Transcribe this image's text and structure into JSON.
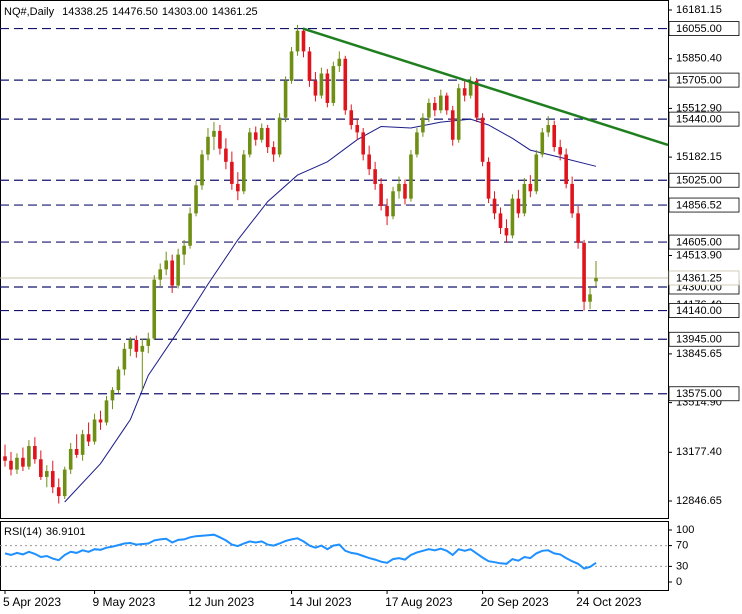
{
  "chart_data": {
    "type": "candlestick",
    "title": "NQ#,Daily",
    "ohlc_labels": [
      "14338.25",
      "14476.50",
      "14303.00",
      "14361.25"
    ],
    "up_color": "#6f8f14",
    "down_color": "#e0141c",
    "xlim": [
      -0.84,
      111.06
    ],
    "xticks": [
      {
        "value": 0,
        "label": "5 Apr 2023"
      },
      {
        "value": 15,
        "label": "9 May 2023"
      },
      {
        "value": 31,
        "label": "12 Jun 2023"
      },
      {
        "value": 48,
        "label": "14 Jul 2023"
      },
      {
        "value": 64,
        "label": "17 Aug 2023"
      },
      {
        "value": 80,
        "label": "20 Sep 2023"
      },
      {
        "value": 96,
        "label": "24 Oct 2023"
      }
    ],
    "ylim": [
      12731.2,
      16249.06
    ],
    "yticks": [
      12846.65,
      {
        "value": 13177.4,
        "label": "13177.40"
      },
      {
        "value": 13514.9,
        "label": "13514.90"
      },
      13845.65,
      {
        "value": 14176.4,
        "label": "14176.40"
      },
      {
        "value": 14513.9,
        "label": "14513.90"
      },
      15182.15,
      {
        "value": 15512.9,
        "label": "15512.90"
      },
      {
        "value": 15850.4,
        "label": "15850.40"
      },
      16181.15
    ],
    "ohlc": [
      [
        13150,
        13230,
        13080,
        13120
      ],
      [
        13120,
        13180,
        13020,
        13060
      ],
      [
        13060,
        13170,
        13030,
        13140
      ],
      [
        13140,
        13210,
        13050,
        13080
      ],
      [
        13080,
        13260,
        13060,
        13220
      ],
      [
        13220,
        13280,
        13100,
        13130
      ],
      [
        13130,
        13190,
        12990,
        13010
      ],
      [
        13010,
        13090,
        12940,
        13050
      ],
      [
        13050,
        13120,
        12900,
        12940
      ],
      [
        12940,
        13000,
        12830,
        12880
      ],
      [
        12880,
        13080,
        12860,
        13060
      ],
      [
        13060,
        13240,
        13030,
        13200
      ],
      [
        13200,
        13300,
        13140,
        13160
      ],
      [
        13160,
        13330,
        13120,
        13300
      ],
      [
        13300,
        13380,
        13220,
        13250
      ],
      [
        13250,
        13440,
        13230,
        13400
      ],
      [
        13400,
        13460,
        13330,
        13380
      ],
      [
        13380,
        13560,
        13360,
        13530
      ],
      [
        13530,
        13620,
        13470,
        13600
      ],
      [
        13600,
        13760,
        13580,
        13740
      ],
      [
        13740,
        13920,
        13700,
        13880
      ],
      [
        13880,
        13960,
        13830,
        13940
      ],
      [
        13940,
        13970,
        13820,
        13860
      ],
      [
        13860,
        13950,
        13600,
        13900
      ],
      [
        13900,
        13990,
        13850,
        13950
      ],
      [
        13950,
        14380,
        13940,
        14350
      ],
      [
        14350,
        14460,
        14300,
        14420
      ],
      [
        14420,
        14540,
        14380,
        14480
      ],
      [
        14480,
        14520,
        14260,
        14310
      ],
      [
        14310,
        14560,
        14290,
        14520
      ],
      [
        14520,
        14620,
        14450,
        14580
      ],
      [
        14580,
        14840,
        14560,
        14800
      ],
      [
        14800,
        15020,
        14780,
        14990
      ],
      [
        14990,
        15230,
        14960,
        15200
      ],
      [
        15200,
        15380,
        15160,
        15320
      ],
      [
        15320,
        15420,
        15230,
        15360
      ],
      [
        15360,
        15400,
        15200,
        15240
      ],
      [
        15240,
        15310,
        15100,
        15150
      ],
      [
        15150,
        15220,
        14960,
        15000
      ],
      [
        15000,
        15080,
        14890,
        14950
      ],
      [
        14950,
        15230,
        14930,
        15200
      ],
      [
        15200,
        15380,
        15180,
        15350
      ],
      [
        15350,
        15390,
        15260,
        15300
      ],
      [
        15300,
        15410,
        15280,
        15380
      ],
      [
        15380,
        15400,
        15210,
        15250
      ],
      [
        15250,
        15290,
        15150,
        15200
      ],
      [
        15200,
        15480,
        15180,
        15450
      ],
      [
        15450,
        15730,
        15420,
        15700
      ],
      [
        15700,
        15930,
        15680,
        15900
      ],
      [
        15900,
        16080,
        15870,
        16040
      ],
      [
        16040,
        16060,
        15860,
        15900
      ],
      [
        15900,
        15930,
        15660,
        15700
      ],
      [
        15700,
        15760,
        15560,
        15600
      ],
      [
        15600,
        15790,
        15580,
        15750
      ],
      [
        15750,
        15780,
        15520,
        15550
      ],
      [
        15550,
        15830,
        15530,
        15800
      ],
      [
        15800,
        15900,
        15760,
        15850
      ],
      [
        15850,
        15870,
        15470,
        15500
      ],
      [
        15500,
        15540,
        15370,
        15400
      ],
      [
        15400,
        15440,
        15300,
        15350
      ],
      [
        15350,
        15380,
        15160,
        15200
      ],
      [
        15200,
        15260,
        15060,
        15100
      ],
      [
        15100,
        15150,
        14960,
        15000
      ],
      [
        15000,
        15040,
        14820,
        14850
      ],
      [
        14850,
        14900,
        14720,
        14780
      ],
      [
        14780,
        14980,
        14760,
        14950
      ],
      [
        14950,
        15050,
        14900,
        15000
      ],
      [
        15000,
        15030,
        14860,
        14900
      ],
      [
        14900,
        15230,
        14880,
        15200
      ],
      [
        15200,
        15380,
        15180,
        15350
      ],
      [
        15350,
        15480,
        15320,
        15450
      ],
      [
        15450,
        15580,
        15420,
        15550
      ],
      [
        15550,
        15590,
        15460,
        15500
      ],
      [
        15500,
        15640,
        15480,
        15600
      ],
      [
        15600,
        15620,
        15470,
        15500
      ],
      [
        15500,
        15530,
        15260,
        15300
      ],
      [
        15300,
        15680,
        15280,
        15650
      ],
      [
        15650,
        15700,
        15560,
        15600
      ],
      [
        15600,
        15730,
        15580,
        15700
      ],
      [
        15700,
        15720,
        15420,
        15450
      ],
      [
        15450,
        15480,
        15120,
        15150
      ],
      [
        15150,
        15180,
        14870,
        14900
      ],
      [
        14900,
        14950,
        14760,
        14800
      ],
      [
        14800,
        14840,
        14660,
        14700
      ],
      [
        14700,
        14760,
        14600,
        14650
      ],
      [
        14650,
        14930,
        14630,
        14900
      ],
      [
        14900,
        14960,
        14770,
        14800
      ],
      [
        14800,
        15040,
        14780,
        15000
      ],
      [
        15000,
        15060,
        14910,
        14950
      ],
      [
        14950,
        15230,
        14930,
        15200
      ],
      [
        15200,
        15380,
        15180,
        15350
      ],
      [
        15350,
        15460,
        15320,
        15400
      ],
      [
        15400,
        15430,
        15220,
        15250
      ],
      [
        15250,
        15300,
        15160,
        15200
      ],
      [
        15200,
        15240,
        14970,
        15000
      ],
      [
        15000,
        15050,
        14770,
        14800
      ],
      [
        14800,
        14850,
        14560,
        14600
      ],
      [
        14600,
        14620,
        14140,
        14200
      ],
      [
        14200,
        14300,
        14150,
        14250
      ],
      [
        14338.25,
        14476.5,
        14303,
        14361.25
      ]
    ],
    "ma": {
      "color": "#1c1c8a",
      "x": [
        10,
        16,
        21,
        24,
        29,
        34,
        39,
        44,
        49,
        54,
        59,
        63,
        68,
        73,
        78,
        81,
        85,
        88,
        93,
        99
      ],
      "values": [
        12840,
        13100,
        13400,
        13700,
        14000,
        14320,
        14620,
        14880,
        15060,
        15150,
        15300,
        15390,
        15380,
        15420,
        15440,
        15400,
        15310,
        15230,
        15180,
        15120
      ]
    },
    "trendline": {
      "color": "#1f7f1f",
      "x": [
        49.9,
        111.06
      ],
      "values": [
        16055,
        15265
      ]
    },
    "levels": {
      "color": "#14146e",
      "values": [
        {
          "value": 16055,
          "label": "16055.00"
        },
        {
          "value": 15705,
          "label": "15705.00"
        },
        {
          "value": 15440,
          "label": "15440.00"
        },
        {
          "value": 15025,
          "label": "15025.00"
        },
        14856.52,
        {
          "value": 14605,
          "label": "14605.00"
        },
        {
          "value": 14300,
          "label": "14300.00"
        },
        {
          "value": 14140,
          "label": "14140.00"
        },
        {
          "value": 13945,
          "label": "13945.00"
        },
        {
          "value": 13575,
          "label": "13575.00"
        }
      ]
    },
    "rsi": {
      "title": "RSI(14)",
      "color": "#1e90ff",
      "ylim": [
        -15.4,
        117.3
      ],
      "yticks": [
        0,
        30,
        70,
        100
      ],
      "levels": [
        30,
        70
      ],
      "values": [
        55,
        52,
        56,
        53,
        58,
        54,
        48,
        50,
        45,
        42,
        52,
        58,
        56,
        61,
        58,
        63,
        62,
        66,
        68,
        71,
        74,
        75,
        72,
        73,
        74,
        80,
        82,
        83,
        76,
        81,
        82,
        86,
        88,
        89,
        90,
        91,
        86,
        80,
        72,
        69,
        74,
        78,
        76,
        78,
        72,
        70,
        74,
        79,
        82,
        84,
        78,
        70,
        66,
        70,
        63,
        70,
        72,
        60,
        56,
        54,
        50,
        46,
        43,
        39,
        37,
        44,
        46,
        43,
        52,
        57,
        60,
        63,
        61,
        64,
        60,
        52,
        63,
        60,
        63,
        55,
        47,
        40,
        38,
        36,
        35,
        44,
        41,
        48,
        46,
        55,
        60,
        61,
        55,
        53,
        46,
        40,
        35,
        26,
        29,
        36.9101
      ]
    }
  }
}
